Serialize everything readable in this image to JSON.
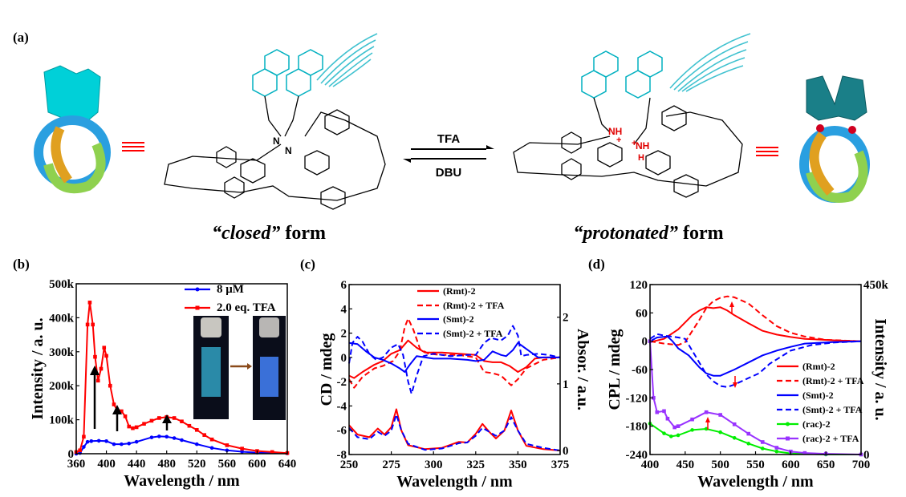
{
  "panels": {
    "a": "(a)",
    "b": "(b)",
    "c": "(c)",
    "d": "(d)"
  },
  "scheme": {
    "forward_reagent": "TFA",
    "reverse_reagent": "DBU",
    "closed_label_italic": "“closed”",
    "closed_label_rest": " form",
    "protonated_label_italic": "“protonated”",
    "protonated_label_rest": " form",
    "nitrogen": "N",
    "ammonium": "NH",
    "charge": "+",
    "oxygen": "O",
    "hydrogen": "H",
    "colors": {
      "anthracene": "#00c8d2",
      "equivalence": "#ff0000",
      "knot_blue": "#2a9fe0",
      "knot_orange": "#e0a020",
      "knot_green": "#8fd14f"
    }
  },
  "chart_data": [
    {
      "panel": "b",
      "type": "line",
      "xlabel": "Wavelength / nm",
      "ylabel": "Intensity / a. u.",
      "xlim": [
        360,
        640
      ],
      "ylim": [
        0,
        500000
      ],
      "xticks": [
        360,
        400,
        440,
        480,
        520,
        560,
        600,
        640
      ],
      "xtick_labels": [
        "360",
        "400",
        "440",
        "480",
        "520",
        "560",
        "600",
        "640"
      ],
      "yticks": [
        0,
        100000,
        200000,
        300000,
        400000,
        500000
      ],
      "ytick_labels": [
        "0",
        "100k",
        "200k",
        "300k",
        "400k",
        "500k"
      ],
      "legend": "top-right",
      "series": [
        {
          "name": "8 μM",
          "color": "#0000ff",
          "marker": "circle",
          "x": [
            360,
            365,
            370,
            375,
            380,
            390,
            400,
            410,
            420,
            430,
            440,
            460,
            470,
            480,
            490,
            500,
            520,
            540,
            560,
            580,
            600,
            640
          ],
          "y": [
            0,
            2000,
            20000,
            35000,
            37000,
            38000,
            37000,
            28000,
            28000,
            30000,
            35000,
            48000,
            51000,
            50000,
            46000,
            40000,
            28000,
            17000,
            10000,
            6000,
            3000,
            1000
          ]
        },
        {
          "name": "2.0 eq. TFA",
          "color": "#ff0000",
          "marker": "square",
          "x": [
            360,
            365,
            370,
            375,
            378,
            382,
            385,
            389,
            393,
            397,
            400,
            405,
            410,
            415,
            420,
            425,
            430,
            435,
            440,
            450,
            460,
            470,
            480,
            490,
            500,
            510,
            520,
            530,
            540,
            560,
            580,
            600,
            620,
            640
          ],
          "y": [
            5000,
            10000,
            50000,
            380000,
            445000,
            380000,
            285000,
            215000,
            250000,
            312000,
            288000,
            200000,
            145000,
            125000,
            125000,
            110000,
            80000,
            75000,
            78000,
            88000,
            97000,
            105000,
            108000,
            105000,
            95000,
            82000,
            70000,
            55000,
            42000,
            25000,
            15000,
            8000,
            5000,
            2000
          ]
        }
      ],
      "annotations": [
        "up-arrow at 385 nm",
        "up-arrow at 415 nm",
        "up-arrow at 480 nm",
        "inset: cuvette photos before/after TFA"
      ]
    },
    {
      "panel": "c",
      "type": "line",
      "xlabel": "Wavelength / nm",
      "ylabel": "CD / mdeg",
      "ylabel_right": "Absor. / a.u.",
      "xlim": [
        250,
        375
      ],
      "ylim": [
        -8,
        6
      ],
      "ylim_right": [
        -0.06,
        2.49
      ],
      "xticks": [
        250,
        275,
        300,
        325,
        350,
        375
      ],
      "xtick_labels": [
        "250",
        "275",
        "300",
        "325",
        "350",
        "375"
      ],
      "yticks": [
        -8,
        -6,
        -4,
        -2,
        0,
        2,
        4,
        6
      ],
      "ytick_labels": [
        "-8",
        "-6",
        "-4",
        "-2",
        "0",
        "2",
        "4",
        "6"
      ],
      "yticks_right": [
        0,
        1,
        2
      ],
      "ytick_labels_right": [
        "0",
        "1",
        "2"
      ],
      "legend": "top-center",
      "series": [
        {
          "name": "(Rmt)-2",
          "color": "#ff0000",
          "dash": false,
          "axis": "left",
          "x": [
            250,
            253,
            258,
            265,
            270,
            275,
            280,
            285,
            290,
            295,
            305,
            315,
            325,
            330,
            335,
            340,
            345,
            350,
            355,
            360,
            365,
            375
          ],
          "y": [
            -1.5,
            -1.7,
            -1.2,
            -0.6,
            -0.3,
            0.3,
            0.6,
            1.4,
            0.8,
            0.4,
            0.4,
            0.3,
            0.2,
            -0.3,
            -0.4,
            -0.4,
            -0.7,
            -1.2,
            -0.8,
            -0.1,
            0,
            0
          ]
        },
        {
          "name": "(Rmt)-2 + TFA",
          "color": "#ff0000",
          "dash": true,
          "axis": "left",
          "x": [
            250,
            253,
            258,
            265,
            270,
            276,
            280,
            283,
            285,
            288,
            292,
            297,
            305,
            315,
            325,
            330,
            335,
            340,
            346,
            350,
            355,
            365,
            375
          ],
          "y": [
            -1.8,
            -2.5,
            -1.6,
            -0.9,
            -0.7,
            -0.3,
            0.5,
            2.5,
            3.2,
            2.3,
            0.7,
            0.3,
            0.2,
            0.2,
            0,
            -1.2,
            -1.3,
            -1.5,
            -2.3,
            -1.8,
            -0.9,
            -0.2,
            0
          ]
        },
        {
          "name": "(Smt)-2",
          "color": "#0000ff",
          "dash": false,
          "axis": "left",
          "x": [
            250,
            255,
            260,
            265,
            270,
            275,
            280,
            283,
            286,
            290,
            300,
            310,
            320,
            325,
            330,
            335,
            340,
            343,
            347,
            350,
            355,
            362,
            375
          ],
          "y": [
            1.2,
            1.1,
            0.5,
            0,
            -0.2,
            -0.5,
            -0.9,
            -1.2,
            -0.6,
            0.1,
            -0.1,
            -0.1,
            -0.2,
            -0.3,
            -0.2,
            0.5,
            0.2,
            0.1,
            0.6,
            1.2,
            0.7,
            0,
            0
          ]
        },
        {
          "name": "(Smt)-2 + TFA",
          "color": "#0000ff",
          "dash": true,
          "axis": "left",
          "x": [
            250,
            252,
            255,
            258,
            262,
            266,
            270,
            275,
            279,
            282,
            285,
            287,
            290,
            294,
            300,
            310,
            320,
            325,
            330,
            334,
            340,
            344,
            347,
            350,
            352,
            355,
            362,
            368,
            375
          ],
          "y": [
            -0.5,
            1.2,
            1.7,
            1.3,
            0.3,
            -0.2,
            0,
            0.8,
            1.1,
            0.2,
            -2,
            -3,
            -1.5,
            0.1,
            0.3,
            0.1,
            0.2,
            0.2,
            1.2,
            1.6,
            1.4,
            1.8,
            2.6,
            1.8,
            0.1,
            0.2,
            0.3,
            0.2,
            0
          ]
        },
        {
          "color": "#ff0000",
          "dash": false,
          "axis": "right",
          "x": [
            250,
            255,
            262,
            267,
            271,
            275,
            278,
            281,
            285,
            295,
            305,
            315,
            320,
            325,
            329,
            333,
            337,
            342,
            346,
            350,
            355,
            365,
            375
          ],
          "y": [
            0.38,
            0.24,
            0.2,
            0.33,
            0.24,
            0.35,
            0.62,
            0.3,
            0.08,
            0.02,
            0.04,
            0.13,
            0.12,
            0.25,
            0.4,
            0.28,
            0.18,
            0.3,
            0.6,
            0.3,
            0.07,
            0.02,
            0
          ]
        },
        {
          "color": "#0000ff",
          "dash": true,
          "axis": "right",
          "x": [
            250,
            255,
            262,
            267,
            271,
            275,
            278,
            281,
            285,
            295,
            305,
            315,
            320,
            325,
            329,
            333,
            337,
            342,
            346,
            350,
            355,
            365,
            375
          ],
          "y": [
            0.34,
            0.2,
            0.17,
            0.28,
            0.22,
            0.3,
            0.54,
            0.3,
            0.1,
            0.01,
            0.03,
            0.11,
            0.12,
            0.22,
            0.34,
            0.28,
            0.22,
            0.3,
            0.5,
            0.3,
            0.1,
            0.04,
            0
          ]
        }
      ]
    },
    {
      "panel": "d",
      "type": "line",
      "xlabel": "Wavelength / nm",
      "ylabel": "CPL / mdeg",
      "ylabel_right": "Intensity / a. u.",
      "xlim": [
        400,
        700
      ],
      "ylim": [
        -240,
        120
      ],
      "ylim_right": [
        0,
        450000
      ],
      "xticks": [
        400,
        450,
        500,
        550,
        600,
        650,
        700
      ],
      "xtick_labels": [
        "400",
        "450",
        "500",
        "550",
        "600",
        "650",
        "700"
      ],
      "yticks": [
        -240,
        -180,
        -120,
        -60,
        0,
        60,
        120
      ],
      "ytick_labels": [
        "-240",
        "-180",
        "-120",
        "-60",
        "0",
        "60",
        "120"
      ],
      "yticks_right": [
        0,
        450000
      ],
      "ytick_labels_right": [
        "0",
        "450k"
      ],
      "legend": "bottom-right",
      "series": [
        {
          "name": "(Rmt)-2",
          "color": "#ff0000",
          "dash": false,
          "axis": "left",
          "x": [
            400,
            420,
            440,
            460,
            470,
            480,
            490,
            500,
            510,
            520,
            540,
            560,
            580,
            600,
            620,
            660,
            700
          ],
          "y": [
            -2,
            5,
            25,
            55,
            65,
            72,
            70,
            72,
            65,
            55,
            38,
            22,
            14,
            9,
            5,
            2,
            0
          ]
        },
        {
          "name": "(Rmt)-2 + TFA",
          "color": "#ff0000",
          "dash": true,
          "axis": "left",
          "x": [
            400,
            420,
            440,
            450,
            455,
            470,
            480,
            490,
            500,
            510,
            520,
            540,
            560,
            580,
            600,
            620,
            650,
            700
          ],
          "y": [
            0,
            -5,
            -8,
            -2,
            10,
            45,
            70,
            85,
            92,
            95,
            93,
            80,
            55,
            32,
            18,
            10,
            3,
            0
          ]
        },
        {
          "name": "(Smt)-2",
          "color": "#0000ff",
          "dash": false,
          "axis": "left",
          "x": [
            400,
            410,
            425,
            432,
            440,
            455,
            470,
            480,
            490,
            500,
            520,
            540,
            560,
            580,
            600,
            620,
            660,
            700
          ],
          "y": [
            0,
            8,
            10,
            0,
            -15,
            -30,
            -55,
            -68,
            -73,
            -73,
            -60,
            -45,
            -30,
            -20,
            -12,
            -5,
            -2,
            0
          ]
        },
        {
          "name": "(Smt)-2 + TFA",
          "color": "#0000ff",
          "dash": true,
          "axis": "left",
          "x": [
            400,
            410,
            420,
            440,
            450,
            460,
            470,
            480,
            490,
            500,
            510,
            520,
            540,
            555,
            570,
            600,
            630,
            660,
            700
          ],
          "y": [
            5,
            15,
            12,
            8,
            5,
            -20,
            -45,
            -70,
            -85,
            -95,
            -97,
            -92,
            -78,
            -68,
            -48,
            -20,
            -8,
            -3,
            0
          ]
        },
        {
          "name": "(rac)-2",
          "color": "#00ee00",
          "dash": false,
          "axis": "right",
          "marker": "circle",
          "x": [
            400,
            420,
            430,
            440,
            460,
            480,
            500,
            520,
            540,
            560,
            580,
            600,
            650,
            700
          ],
          "y": [
            82000,
            56000,
            48000,
            51000,
            65000,
            68000,
            59000,
            44000,
            29000,
            16000,
            8000,
            3000,
            0,
            0
          ]
        },
        {
          "name": "(rac)-2 + TFA",
          "color": "#9933ff",
          "dash": false,
          "axis": "right",
          "marker": "square",
          "x": [
            400,
            405,
            410,
            420,
            425,
            435,
            440,
            460,
            480,
            500,
            520,
            540,
            560,
            580,
            600,
            620,
            650,
            700
          ],
          "y": [
            300000,
            150000,
            112000,
            115000,
            95000,
            72000,
            75000,
            93000,
            112000,
            105000,
            80000,
            55000,
            33000,
            18000,
            8000,
            4000,
            2000,
            0
          ]
        }
      ],
      "annotations": [
        "up-arrow near 515 nm",
        "down-arrow near 520 nm",
        "up-arrow near 485 nm"
      ]
    }
  ]
}
